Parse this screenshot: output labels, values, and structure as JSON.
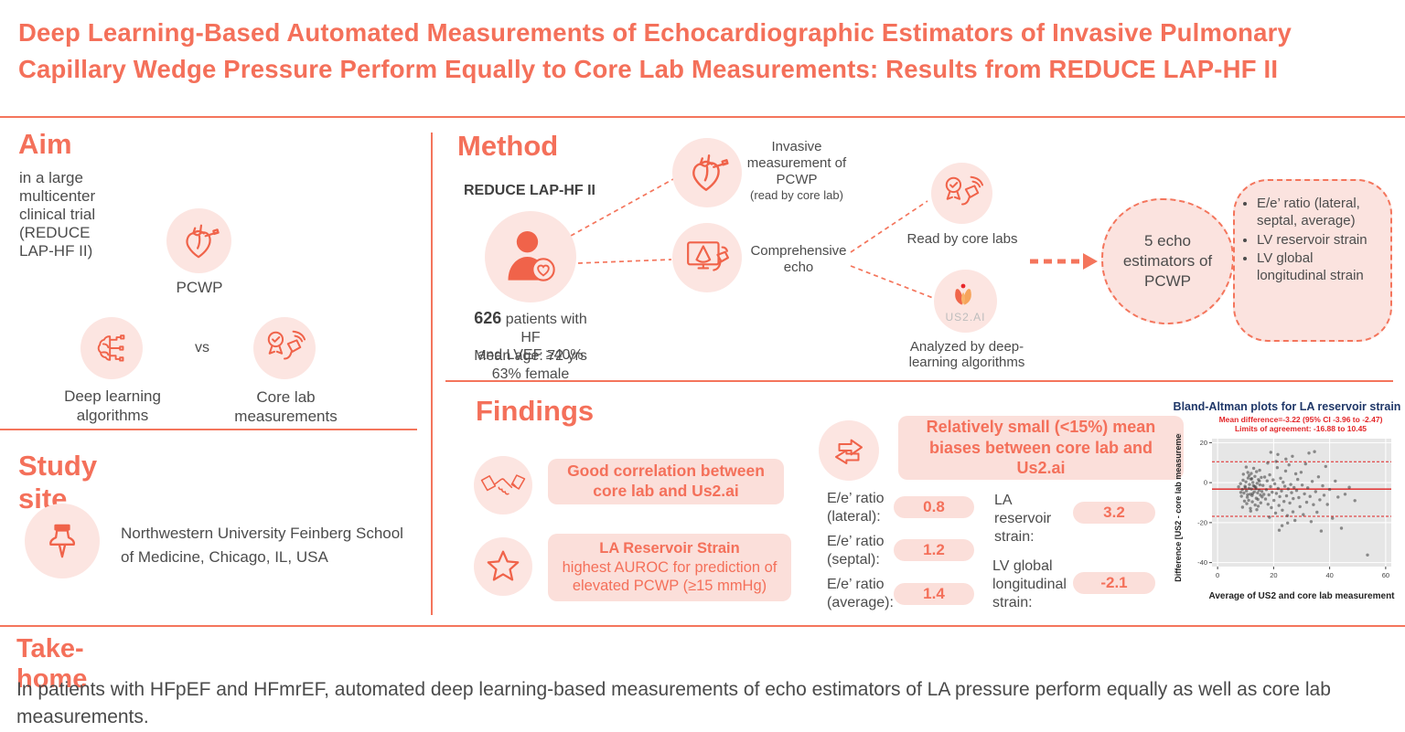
{
  "title": "Deep Learning-Based Automated Measurements of Echocardiographic Estimators of Invasive Pulmonary Capillary Wedge Pressure Perform Equally to Core Lab Measurements: Results from REDUCE LAP-HF II",
  "colors": {
    "coral": "#f4705a",
    "icon_coral": "#f0634a",
    "pink_fill": "#fce5e1",
    "pink_box": "#fbdfda",
    "body_text": "#4c4c4c",
    "chart_title_navy": "#1f3768",
    "chart_annotation_red": "#e32528"
  },
  "aim": {
    "heading": "Aim",
    "subtitle": "in a large multicenter clinical trial (REDUCE LAP-HF II)",
    "pcwp_label": "PCWP",
    "deep_learning_label": "Deep learning algorithms",
    "vs_label": "vs",
    "core_lab_label": "Core lab measurements"
  },
  "study_site": {
    "heading": "Study site",
    "location": "Northwestern University Feinberg School of Medicine, Chicago, IL, USA"
  },
  "method": {
    "heading": "Method",
    "trial_name": "REDUCE LAP-HF II",
    "patients_bold": "626",
    "patients_rest": " patients with HF",
    "patients_line2": "and LVEF ≥40%",
    "mean_age": "Mean age: 72 yrs",
    "female": "63% female",
    "invasive_label": "Invasive measurement of PCWP",
    "invasive_sub": "(read by core lab)",
    "echo_label": "Comprehensive echo",
    "core_labs_label": "Read by core labs",
    "us2_logo_text": "US2.AI",
    "us2_label": "Analyzed by deep-learning algorithms",
    "estimators_label": "5 echo estimators of PCWP",
    "estimator_bullets": [
      "E/e’ ratio (lateral, septal, average)",
      "LV reservoir strain",
      "LV global longitudinal strain"
    ]
  },
  "findings": {
    "heading": "Findings",
    "correlation_text": "Good correlation between core lab and Us2.ai",
    "reservoir_bold": "LA Reservoir Strain",
    "reservoir_rest": "highest AUROC for prediction of elevated PCWP (≥15 mmHg)",
    "biases_heading": "Relatively small (<15%) mean biases between core lab and Us2.ai",
    "bias_rows_left": [
      {
        "label": "E/e’ ratio (lateral):",
        "value": "0.8"
      },
      {
        "label": "E/e’ ratio (septal):",
        "value": "1.2"
      },
      {
        "label": "E/e’ ratio (average):",
        "value": "1.4"
      }
    ],
    "bias_rows_right": [
      {
        "label": "LA reservoir strain:",
        "value": "3.2"
      },
      {
        "label": "LV global longitudinal strain:",
        "value": "-2.1"
      }
    ]
  },
  "take_home": {
    "heading": "Take-home",
    "text": "In patients with HFpEF and HFmrEF, automated deep learning-based measurements of echo estimators of LA pressure perform equally as well as core lab measurements."
  },
  "chart_data": {
    "type": "scatter",
    "title": "Bland-Altman plots for LA reservoir strain",
    "annotation_line1": "Mean difference=-3.22 (95% CI -3.96 to -2.47)",
    "annotation_line2": "Limits of agreement: -16.88 to 10.45",
    "xlabel": "Average of US2 and core lab measurement",
    "ylabel": "Difference [US2 - core lab measurement]",
    "xlim": [
      -2,
      62
    ],
    "ylim": [
      -42,
      22
    ],
    "xticks": [
      0,
      20,
      40,
      60
    ],
    "yticks": [
      20,
      0,
      -20,
      -40
    ],
    "mean_difference": -3.22,
    "loa_upper": 10.45,
    "loa_lower": -16.88,
    "grid": true,
    "legend": false,
    "points": [
      [
        7.5,
        -2.1
      ],
      [
        8.2,
        -0.5
      ],
      [
        8.8,
        -3.4
      ],
      [
        9.1,
        1.2
      ],
      [
        9.4,
        -5.2
      ],
      [
        9.8,
        -1.8
      ],
      [
        10.1,
        0.4
      ],
      [
        10.3,
        -4.1
      ],
      [
        10.6,
        -7.3
      ],
      [
        10.9,
        2.3
      ],
      [
        11.2,
        -2.8
      ],
      [
        11.4,
        -0.9
      ],
      [
        11.6,
        -5.8
      ],
      [
        11.9,
        1.8
      ],
      [
        12.1,
        -3.2
      ],
      [
        12.3,
        -6.5
      ],
      [
        12.6,
        0.1
      ],
      [
        12.8,
        -1.5
      ],
      [
        13.1,
        -4.6
      ],
      [
        13.3,
        3.1
      ],
      [
        13.6,
        -2.2
      ],
      [
        13.8,
        -7.8
      ],
      [
        14.1,
        -0.3
      ],
      [
        14.3,
        -5.1
      ],
      [
        14.6,
        1.5
      ],
      [
        14.8,
        -3.8
      ],
      [
        15.1,
        -1.1
      ],
      [
        15.3,
        -6.2
      ],
      [
        15.6,
        2.6
      ],
      [
        15.8,
        -4.4
      ],
      [
        9.6,
        -9.2
      ],
      [
        10.4,
        -10.5
      ],
      [
        11.1,
        -8.8
      ],
      [
        12.4,
        -9.6
      ],
      [
        13.4,
        -11.2
      ],
      [
        14.4,
        -8.4
      ],
      [
        15.4,
        -10.1
      ],
      [
        8.5,
        -6.8
      ],
      [
        9.2,
        4.2
      ],
      [
        10.8,
        5.1
      ],
      [
        12.0,
        4.6
      ],
      [
        13.9,
        5.5
      ],
      [
        15.0,
        6.2
      ],
      [
        8.9,
        -12.3
      ],
      [
        11.7,
        -12.9
      ],
      [
        14.0,
        -13.5
      ],
      [
        12.9,
        7.2
      ],
      [
        10.2,
        7.8
      ],
      [
        13.2,
        -1.9
      ],
      [
        14.9,
        0.8
      ],
      [
        9.9,
        -2.5
      ],
      [
        11.3,
        3.6
      ],
      [
        12.5,
        -5.5
      ],
      [
        8.3,
        -4.9
      ],
      [
        15.9,
        -7.1
      ],
      [
        13.7,
        -3.0
      ],
      [
        10.7,
        -6.0
      ],
      [
        12.2,
        2.0
      ],
      [
        14.5,
        -11.8
      ],
      [
        11.8,
        -14.2
      ],
      [
        16.2,
        -1.4
      ],
      [
        16.5,
        -5.9
      ],
      [
        16.8,
        2.8
      ],
      [
        17.1,
        -8.2
      ],
      [
        17.4,
        -3.5
      ],
      [
        17.7,
        0.9
      ],
      [
        18.0,
        -10.8
      ],
      [
        18.3,
        -6.1
      ],
      [
        18.6,
        3.9
      ],
      [
        18.9,
        -2.0
      ],
      [
        19.2,
        -12.5
      ],
      [
        19.5,
        -4.8
      ],
      [
        19.8,
        1.4
      ],
      [
        20.1,
        -8.9
      ],
      [
        20.4,
        -0.6
      ],
      [
        20.7,
        -15.2
      ],
      [
        21.0,
        -5.4
      ],
      [
        21.3,
        7.5
      ],
      [
        21.6,
        -2.9
      ],
      [
        21.9,
        -11.4
      ],
      [
        22.2,
        -7.0
      ],
      [
        22.5,
        2.2
      ],
      [
        22.8,
        -4.2
      ],
      [
        23.1,
        -13.8
      ],
      [
        23.4,
        0.2
      ],
      [
        23.7,
        -9.4
      ],
      [
        24.0,
        -1.8
      ],
      [
        24.3,
        5.8
      ],
      [
        24.6,
        -6.6
      ],
      [
        24.9,
        -16.5
      ],
      [
        25.2,
        -3.1
      ],
      [
        25.5,
        8.9
      ],
      [
        25.8,
        -10.2
      ],
      [
        26.1,
        -0.9
      ],
      [
        26.4,
        -5.0
      ],
      [
        26.7,
        13.2
      ],
      [
        27.0,
        -8.0
      ],
      [
        27.3,
        -2.4
      ],
      [
        27.6,
        -18.9
      ],
      [
        27.9,
        4.4
      ],
      [
        19.0,
        15.2
      ],
      [
        21.5,
        14.1
      ],
      [
        23.0,
        -21.5
      ],
      [
        25.0,
        -20.2
      ],
      [
        17.9,
        9.8
      ],
      [
        20.9,
        10.6
      ],
      [
        24.4,
        11.8
      ],
      [
        26.9,
        -14.6
      ],
      [
        18.5,
        -17.3
      ],
      [
        22.0,
        -23.8
      ],
      [
        28.2,
        -3.9
      ],
      [
        28.6,
        1.6
      ],
      [
        29.0,
        -7.5
      ],
      [
        29.4,
        -12.0
      ],
      [
        29.8,
        5.2
      ],
      [
        30.2,
        -1.2
      ],
      [
        30.6,
        -16.0
      ],
      [
        31.0,
        -5.6
      ],
      [
        31.4,
        9.4
      ],
      [
        31.8,
        -9.8
      ],
      [
        32.2,
        -2.6
      ],
      [
        32.6,
        14.8
      ],
      [
        33.0,
        -6.9
      ],
      [
        33.4,
        -19.5
      ],
      [
        33.8,
        0.6
      ],
      [
        34.2,
        -11.0
      ],
      [
        34.6,
        15.5
      ],
      [
        35.0,
        -4.5
      ],
      [
        35.5,
        -14.8
      ],
      [
        36.0,
        2.9
      ],
      [
        36.5,
        -8.6
      ],
      [
        37.0,
        -24.2
      ],
      [
        37.5,
        -1.6
      ],
      [
        38.0,
        -6.3
      ],
      [
        38.6,
        8.1
      ],
      [
        39.2,
        -10.9
      ],
      [
        40.0,
        -3.4
      ],
      [
        41.0,
        -17.8
      ],
      [
        42.0,
        0.8
      ],
      [
        43.0,
        -7.2
      ],
      [
        44.2,
        -22.8
      ],
      [
        45.5,
        -5.8
      ],
      [
        47.0,
        -2.3
      ],
      [
        49.0,
        -9.0
      ],
      [
        53.5,
        -36.2
      ]
    ]
  }
}
